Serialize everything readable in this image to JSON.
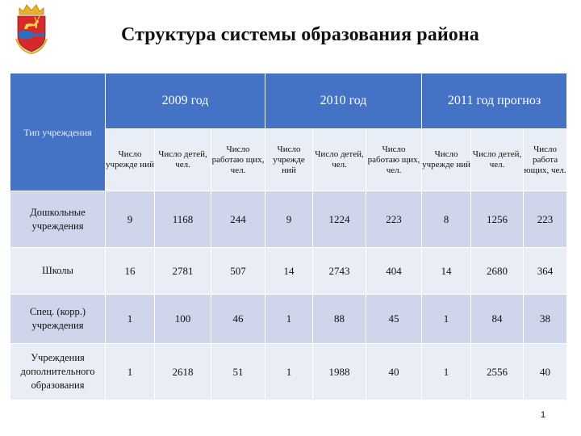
{
  "slide": {
    "title": "Структура системы образования района",
    "page_number": "1",
    "emblem_icon": "district-coat-of-arms-icon"
  },
  "table": {
    "type_header": "Тип учреждения",
    "years": [
      "2009 год",
      "2010 год",
      "2011 год прогноз"
    ],
    "subheaders": [
      "Число учрежде ний",
      "Число детей, чел.",
      "Число работаю щих, чел.",
      "Число учрежде ний",
      "Число детей, чел.",
      "Число работаю щих, чел.",
      "Число учрежде ний",
      "Число детей, чел.",
      "Число работа ющих, чел."
    ],
    "rows": [
      {
        "label": "Дошкольные учреждения",
        "values": [
          "9",
          "1168",
          "244",
          "9",
          "1224",
          "223",
          "8",
          "1256",
          "223"
        ]
      },
      {
        "label": "Школы",
        "values": [
          "16",
          "2781",
          "507",
          "14",
          "2743",
          "404",
          "14",
          "2680",
          "364"
        ]
      },
      {
        "label": "Спец. (корр.) учреждения",
        "values": [
          "1",
          "100",
          "46",
          "1",
          "88",
          "45",
          "1",
          "84",
          "38"
        ]
      },
      {
        "label": "Учреждения дополнительного образования",
        "values": [
          "1",
          "2618",
          "51",
          "1",
          "1988",
          "40",
          "1",
          "2556",
          "40"
        ]
      }
    ]
  },
  "colors": {
    "header_blue": "#4472c4",
    "band_light": "#e9edf5",
    "band_dark": "#cfd5ea"
  }
}
